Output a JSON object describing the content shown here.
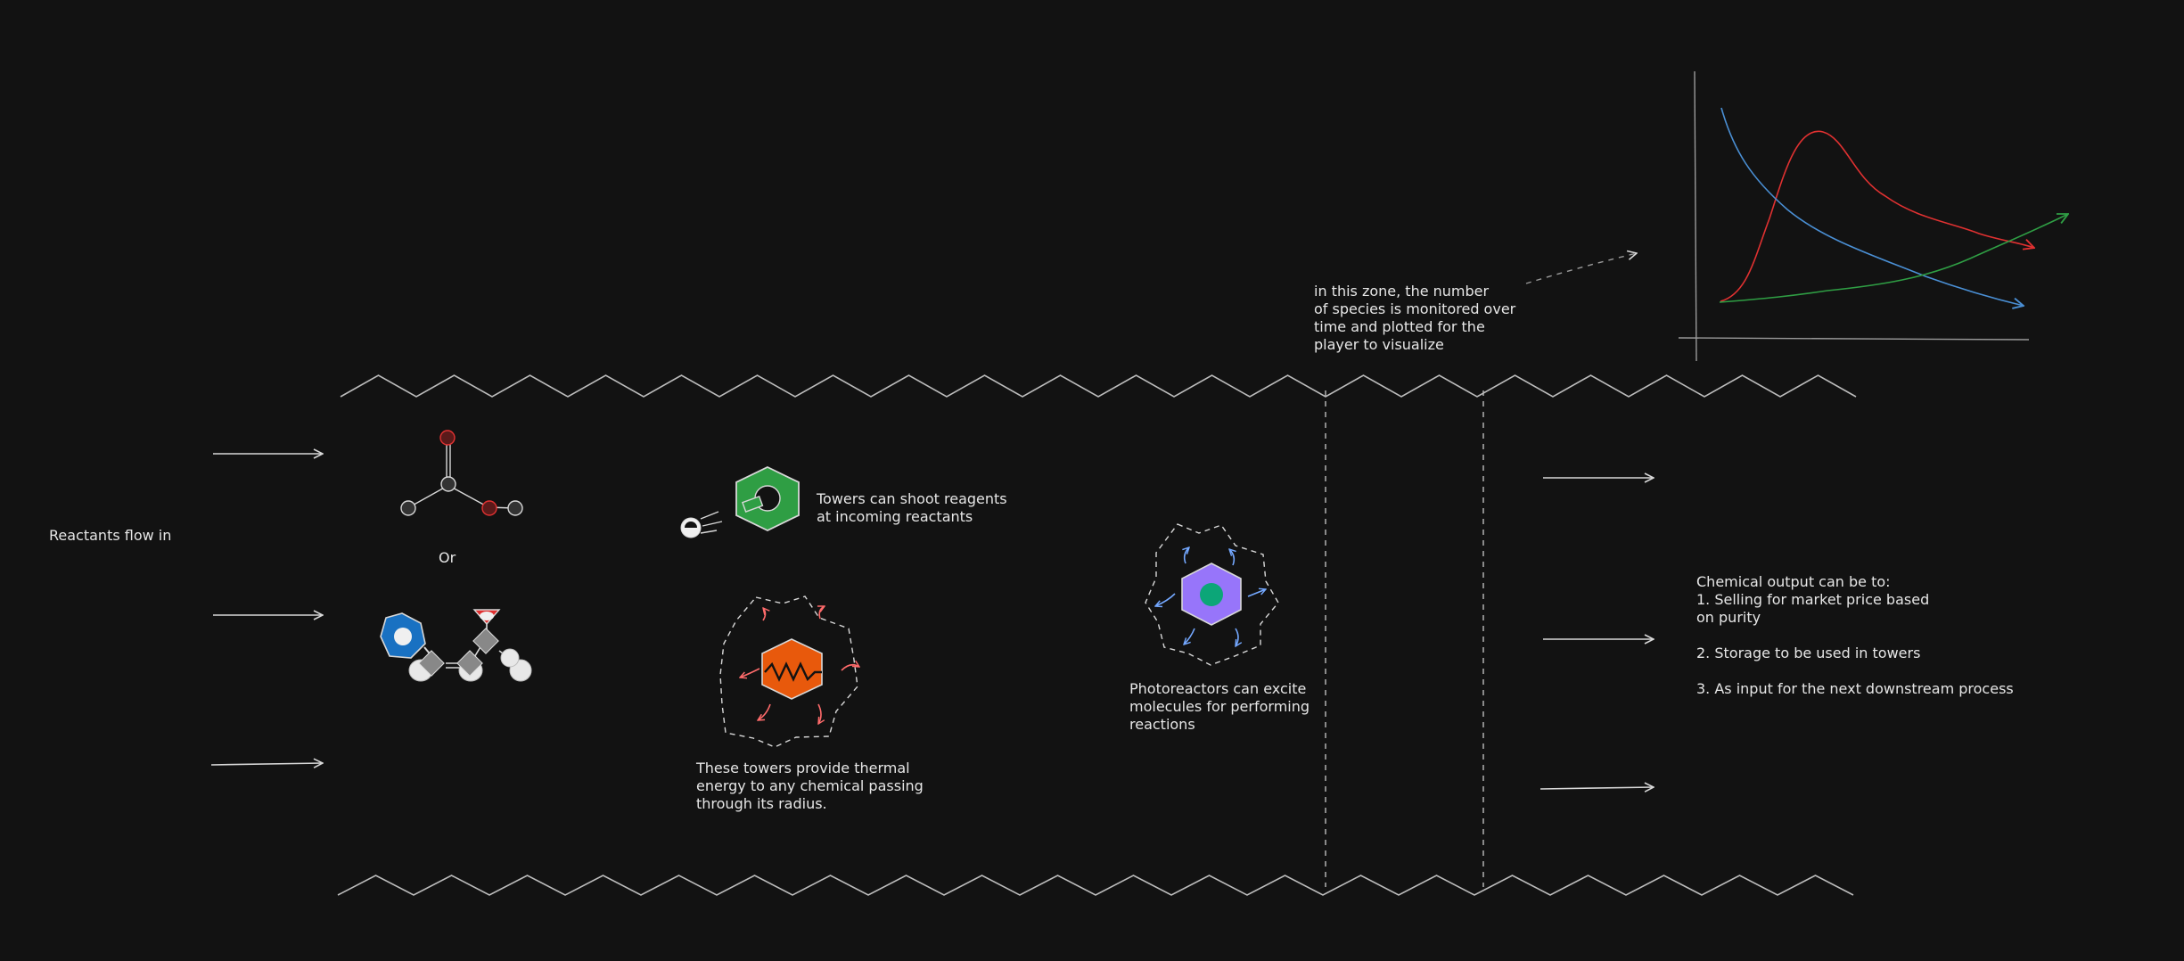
{
  "labels": {
    "reactants_in": "Reactants flow in",
    "or": "Or",
    "towers_shoot": "Towers can shoot reagents\nat incoming reactants",
    "thermal": "These towers provide thermal\nenergy to any chemical passing\nthrough its radius.",
    "photoreactors": "Photoreactors can excite\nmolecules for performing\nreactions",
    "zone_monitor": "in this zone, the number\nof species is monitored over\ntime and plotted for the\nplayer to visualize",
    "output": "Chemical output can be to:\n1. Selling for market price based\non purity\n\n2. Storage to be used in towers\n\n3. As input for the next downstream process"
  },
  "colors": {
    "background": "#121212",
    "stroke": "#d8d8d8",
    "green_tower": "#2f9e44",
    "orange_tower": "#e8590c",
    "purple_tower": "#9775fa",
    "blue_molecule": "#1971c2",
    "red_atom": "#e03131",
    "curve_red": "#e03131",
    "curve_blue": "#4a8fd4",
    "curve_green": "#2f9e44"
  },
  "icons": [
    "arrow-icon",
    "molecule-icon",
    "projectile-icon",
    "heater-icon",
    "photoreactor-icon",
    "plot-icon"
  ]
}
